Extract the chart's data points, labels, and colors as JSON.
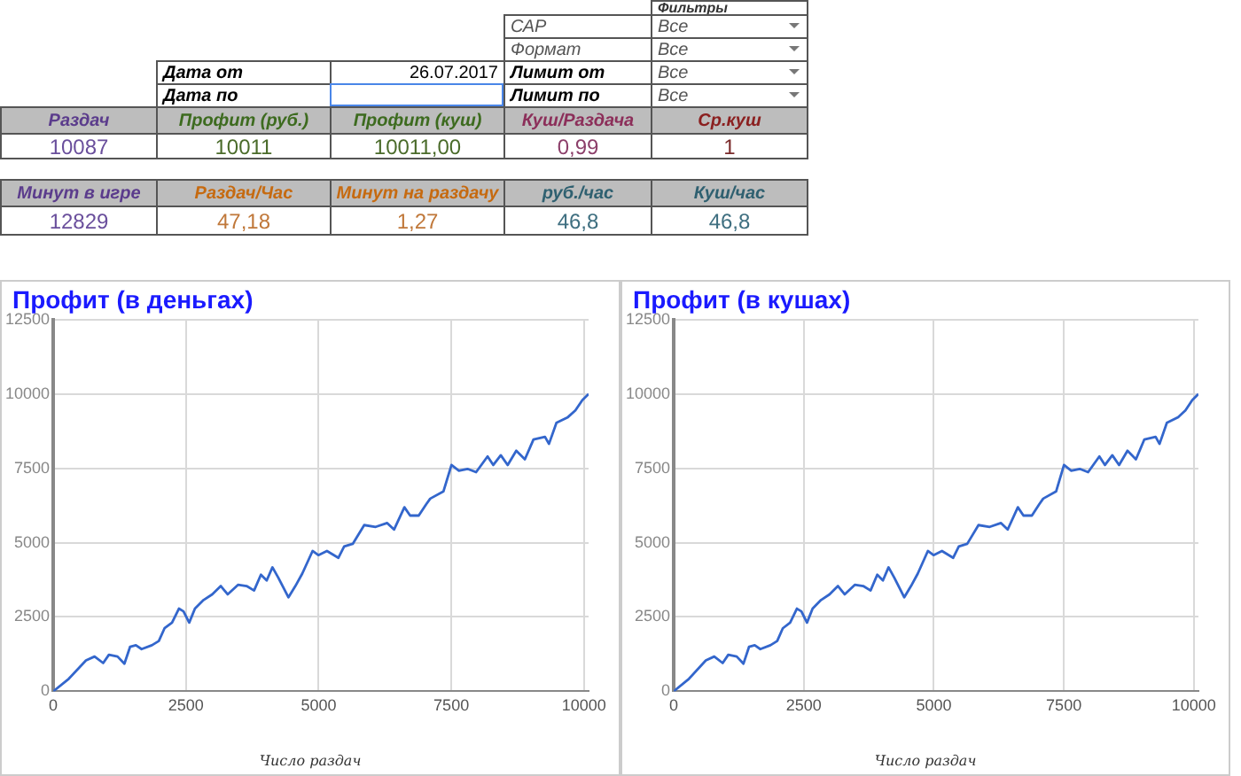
{
  "chart_data": [
    {
      "type": "other",
      "annotations": [
        "Фильтры",
        "САР",
        "Все",
        "Формат",
        "Все",
        "Дата от",
        "26.07.2017",
        "Лимит от",
        "Все",
        "Дата по",
        "Лимит по",
        "Все",
        "Раздач",
        "Профит (руб.)",
        "Профит (куш)",
        "Куш/Раздача",
        "Ср.куш",
        "10087",
        "10011",
        "10011,00",
        "0,99",
        "1",
        "Минут в игре",
        "Раздач/Час",
        "Минут на раздачу",
        "руб./час",
        "Куш/час",
        "12829",
        "47,18",
        "1,27",
        "46,8",
        "46,8"
      ]
    },
    {
      "type": "line",
      "title": "Профит (в деньгах)",
      "xlabel": "Число раздач",
      "x": [
        0,
        292,
        617,
        779,
        941,
        1049,
        1211,
        1341,
        1449,
        1557,
        1665,
        1859,
        1989,
        2097,
        2238,
        2368,
        2454,
        2562,
        2670,
        2832,
        2995,
        3157,
        3286,
        3481,
        3643,
        3784,
        3913,
        4022,
        4130,
        4238,
        4432,
        4562,
        4692,
        4886,
        4995,
        5157,
        5373,
        5481,
        5643,
        5859,
        6075,
        6292,
        6421,
        6616,
        6724,
        6886,
        7027,
        7103,
        7351,
        7503,
        7643,
        7805,
        7967,
        8183,
        8291,
        8432,
        8562,
        8724,
        8886,
        9048,
        9265,
        9340,
        9481,
        9697,
        9838,
        9968,
        10087
      ],
      "series": [
        {
          "color": "#3366cc",
          "values": [
            0,
            420,
            1040,
            1170,
            950,
            1230,
            1170,
            930,
            1500,
            1550,
            1420,
            1550,
            1690,
            2120,
            2310,
            2780,
            2690,
            2310,
            2780,
            3070,
            3260,
            3540,
            3260,
            3580,
            3540,
            3390,
            3920,
            3730,
            4170,
            3830,
            3160,
            3540,
            3960,
            4720,
            4580,
            4720,
            4490,
            4870,
            4960,
            5590,
            5530,
            5660,
            5440,
            6190,
            5910,
            5910,
            6290,
            6480,
            6720,
            7610,
            7420,
            7480,
            7370,
            7900,
            7610,
            7940,
            7610,
            8090,
            7800,
            8470,
            8560,
            8320,
            9030,
            9220,
            9450,
            9790,
            10000
          ]
        }
      ],
      "xlim": [
        0,
        10087
      ],
      "xticks": [
        0,
        2500,
        5000,
        7500,
        10000
      ],
      "ylim": [
        0,
        12500
      ],
      "yticks": [
        0,
        2500,
        5000,
        7500,
        10000,
        12500
      ],
      "grid": true
    },
    {
      "type": "line",
      "title": "Профит (в кушах)",
      "xlabel": "Число раздач",
      "x": [
        0,
        292,
        617,
        779,
        941,
        1049,
        1211,
        1341,
        1449,
        1557,
        1665,
        1859,
        1989,
        2097,
        2238,
        2368,
        2454,
        2562,
        2670,
        2832,
        2995,
        3157,
        3286,
        3481,
        3643,
        3784,
        3913,
        4022,
        4130,
        4238,
        4432,
        4562,
        4692,
        4886,
        4995,
        5157,
        5373,
        5481,
        5643,
        5859,
        6075,
        6292,
        6421,
        6616,
        6724,
        6886,
        7027,
        7103,
        7351,
        7503,
        7643,
        7805,
        7967,
        8183,
        8291,
        8432,
        8562,
        8724,
        8886,
        9048,
        9265,
        9340,
        9481,
        9697,
        9838,
        9968,
        10087
      ],
      "series": [
        {
          "color": "#3366cc",
          "values": [
            0,
            420,
            1040,
            1170,
            950,
            1230,
            1170,
            930,
            1500,
            1550,
            1420,
            1550,
            1690,
            2120,
            2310,
            2780,
            2690,
            2310,
            2780,
            3070,
            3260,
            3540,
            3260,
            3580,
            3540,
            3390,
            3920,
            3730,
            4170,
            3830,
            3160,
            3540,
            3960,
            4720,
            4580,
            4720,
            4490,
            4870,
            4960,
            5590,
            5530,
            5660,
            5440,
            6190,
            5910,
            5910,
            6290,
            6480,
            6720,
            7610,
            7420,
            7480,
            7370,
            7900,
            7610,
            7940,
            7610,
            8090,
            7800,
            8470,
            8560,
            8320,
            9030,
            9220,
            9450,
            9790,
            10000
          ]
        }
      ],
      "xlim": [
        0,
        10087
      ],
      "xticks": [
        0,
        2500,
        5000,
        7500,
        10000
      ],
      "ylim": [
        0,
        12500
      ],
      "yticks": [
        0,
        2500,
        5000,
        7500,
        10000,
        12500
      ],
      "grid": true
    }
  ]
}
